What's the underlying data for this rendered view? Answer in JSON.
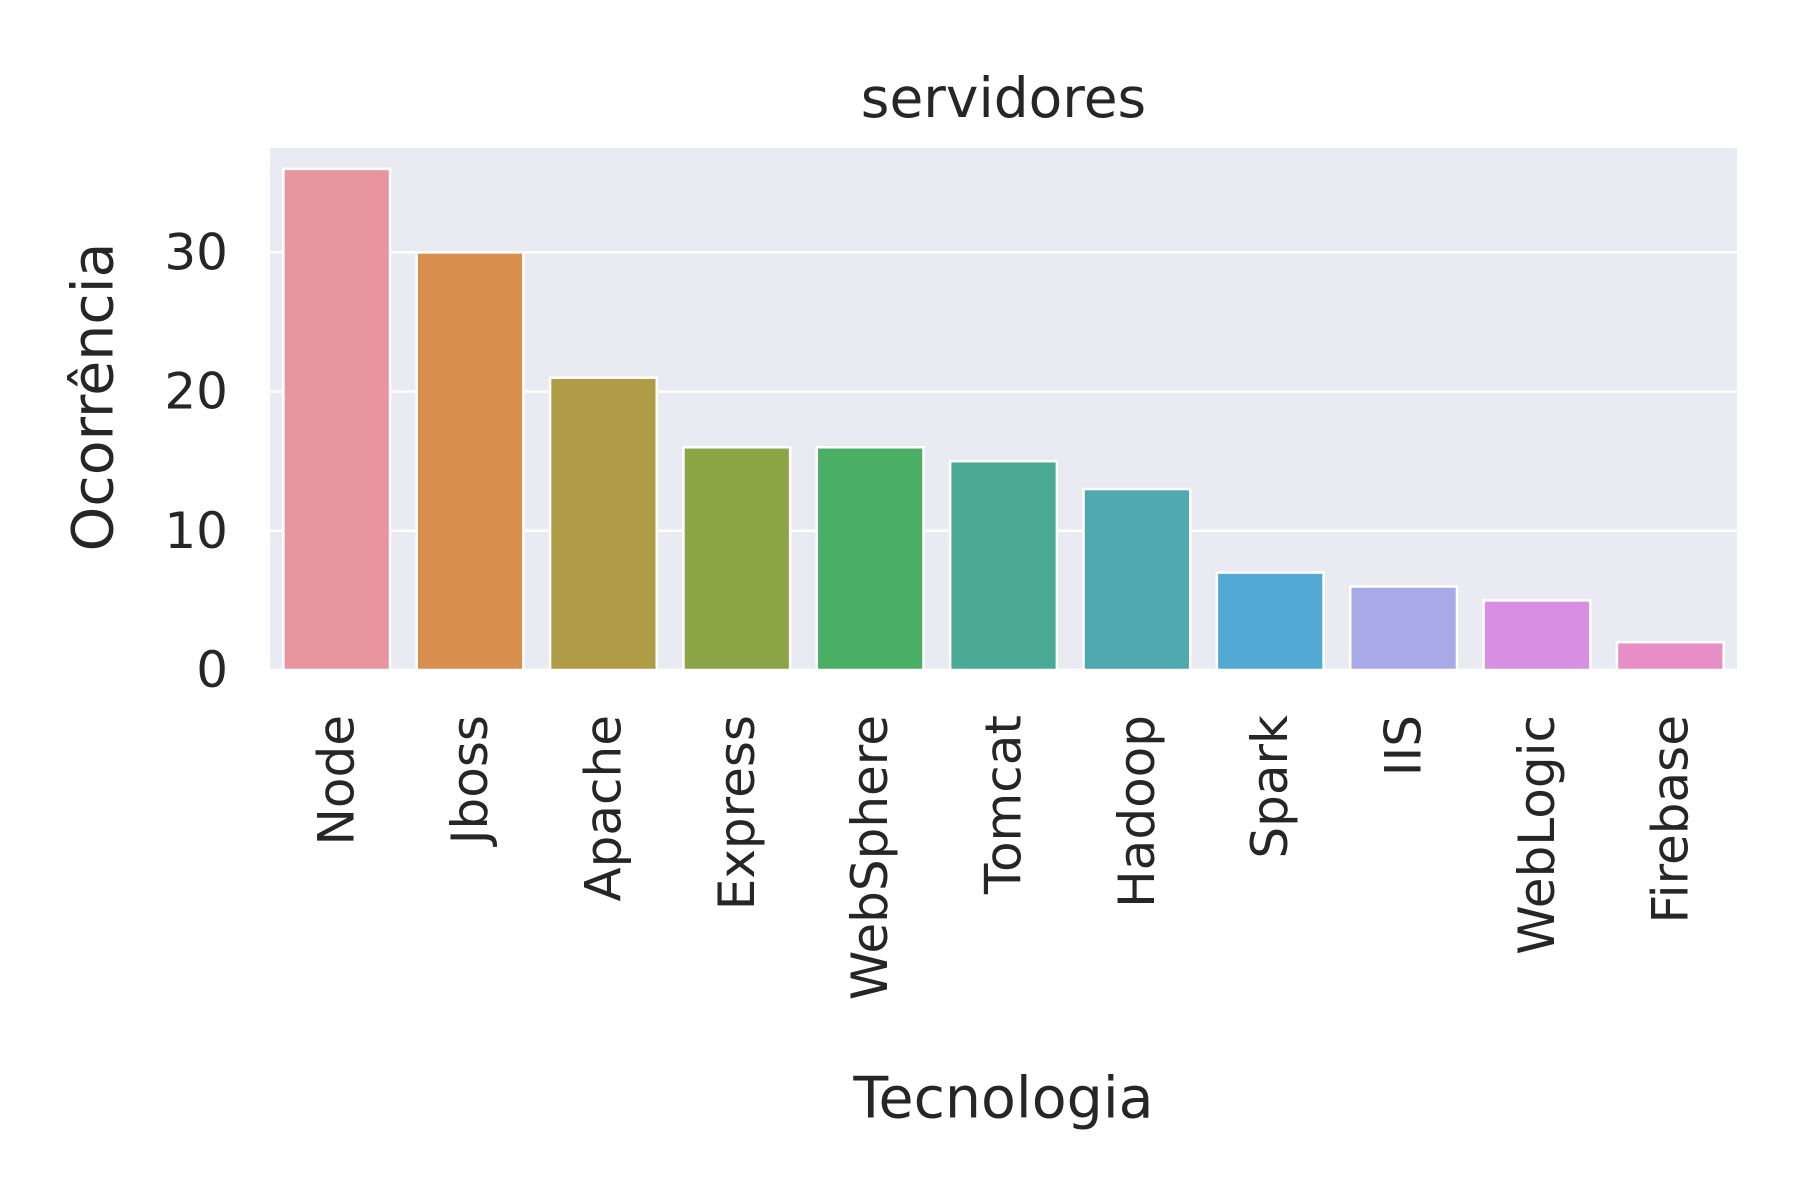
{
  "chart_data": {
    "type": "bar",
    "title": "servidores",
    "xlabel": "Tecnologia",
    "ylabel": "Ocorrência",
    "categories": [
      "Node",
      "Jboss",
      "Apache",
      "Express",
      "WebSphere",
      "Tomcat",
      "Hadoop",
      "Spark",
      "IIS",
      "WebLogic",
      "Firebase"
    ],
    "values": [
      36,
      30,
      21,
      16,
      16,
      15,
      13,
      7,
      6,
      5,
      2
    ],
    "colors": [
      "#e8959f",
      "#d98f4d",
      "#b09b47",
      "#8ba546",
      "#4aae65",
      "#4aaa95",
      "#4ea9b0",
      "#52a9d4",
      "#a8aae8",
      "#d68fe2",
      "#e88ec7"
    ],
    "ylim": [
      0,
      37.5
    ],
    "yticks": [
      0,
      10,
      20,
      30
    ],
    "grid": true,
    "legend": "none",
    "background": "#eaeaf2"
  }
}
